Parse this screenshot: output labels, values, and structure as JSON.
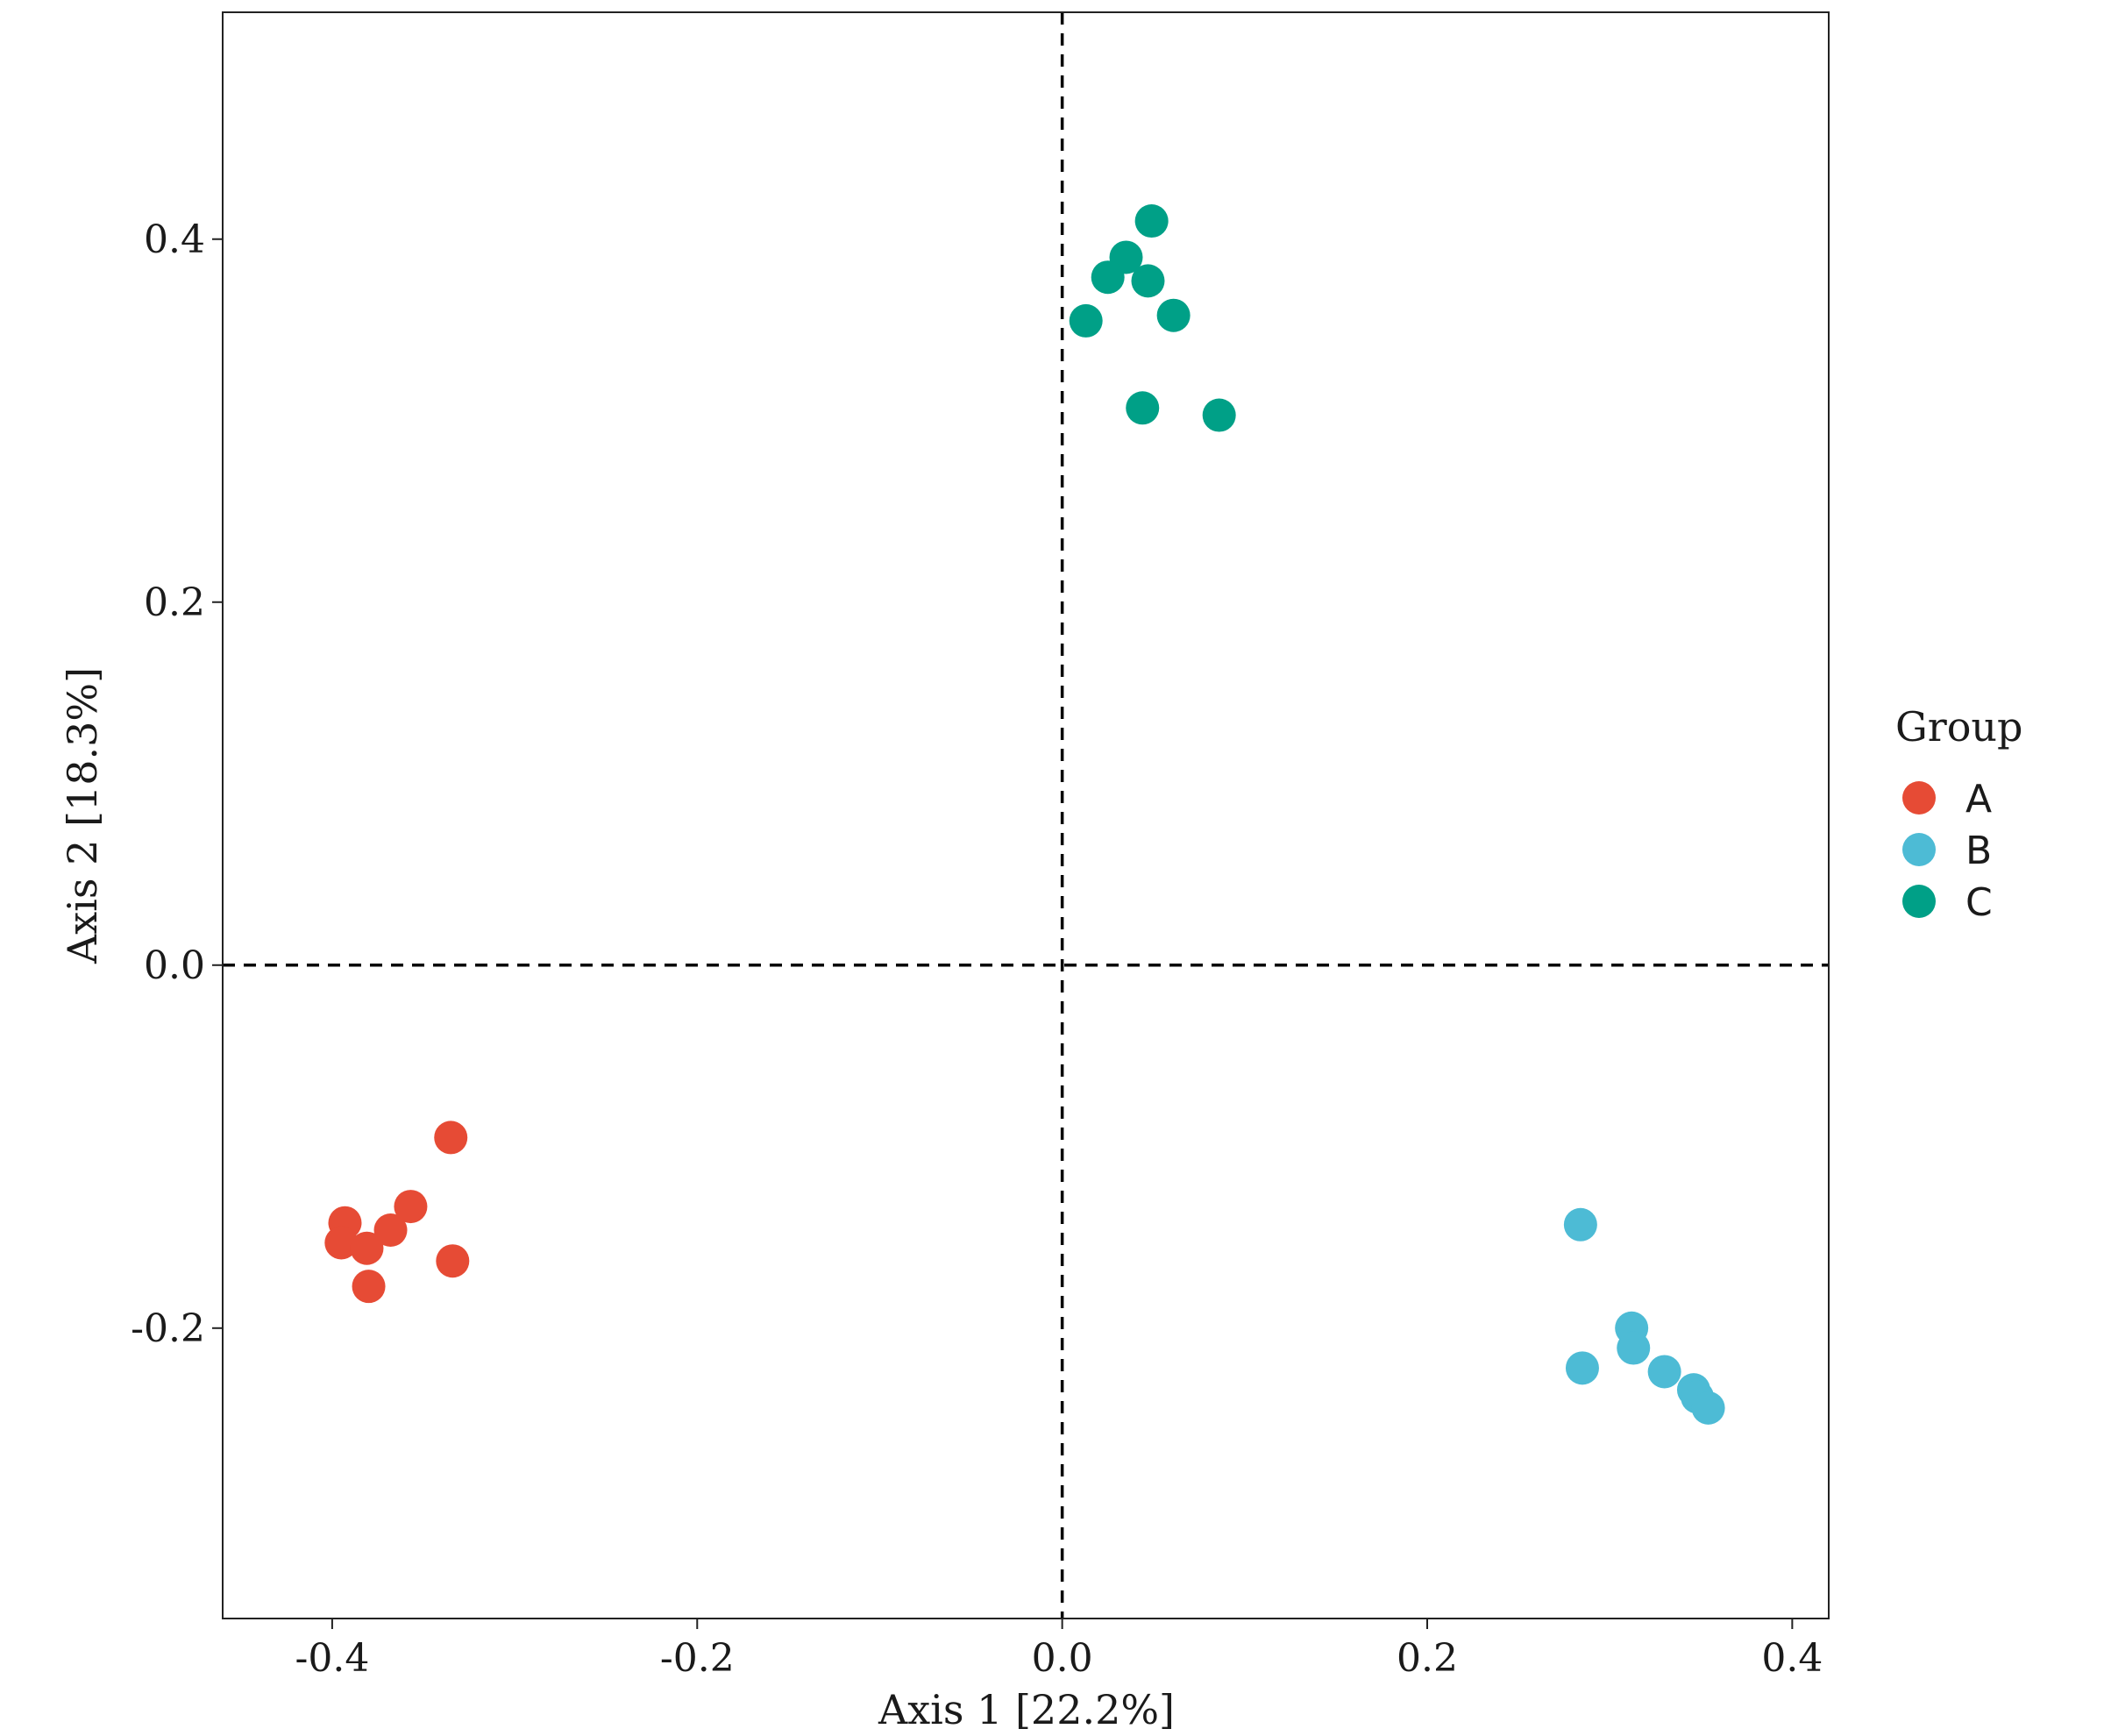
{
  "chart_data": {
    "type": "scatter",
    "xlabel": "Axis 1 [22.2%]",
    "ylabel": "Axis 2 [18.3%]",
    "xlim": [
      -0.46,
      0.42
    ],
    "ylim": [
      -0.36,
      0.525
    ],
    "x_ticks": [
      -0.4,
      -0.2,
      0.0,
      0.2,
      0.4
    ],
    "x_tick_labels": [
      "-0.4",
      "-0.2",
      "0.0",
      "0.2",
      "0.4"
    ],
    "y_ticks": [
      -0.2,
      0.0,
      0.2,
      0.4
    ],
    "y_tick_labels": [
      "-0.2",
      "0.0",
      "0.2",
      "0.4"
    ],
    "reference_lines": {
      "x": 0.0,
      "y": 0.0,
      "style": "dashed"
    },
    "grid": false,
    "legend": {
      "title": "Group",
      "placement": "right"
    },
    "series": [
      {
        "name": "A",
        "color": "#E64B35",
        "points": [
          [
            -0.335,
            -0.095
          ],
          [
            -0.357,
            -0.133
          ],
          [
            -0.368,
            -0.146
          ],
          [
            -0.393,
            -0.142
          ],
          [
            -0.395,
            -0.153
          ],
          [
            -0.381,
            -0.156
          ],
          [
            -0.334,
            -0.163
          ],
          [
            -0.38,
            -0.177
          ]
        ]
      },
      {
        "name": "B",
        "color": "#4DBBD5",
        "points": [
          [
            0.284,
            -0.143
          ],
          [
            0.312,
            -0.2
          ],
          [
            0.313,
            -0.211
          ],
          [
            0.285,
            -0.222
          ],
          [
            0.33,
            -0.224
          ],
          [
            0.346,
            -0.234
          ],
          [
            0.348,
            -0.238
          ],
          [
            0.354,
            -0.244
          ]
        ]
      },
      {
        "name": "C",
        "color": "#00A087",
        "points": [
          [
            0.049,
            0.41
          ],
          [
            0.035,
            0.39
          ],
          [
            0.025,
            0.379
          ],
          [
            0.047,
            0.377
          ],
          [
            0.013,
            0.355
          ],
          [
            0.061,
            0.358
          ],
          [
            0.044,
            0.307
          ],
          [
            0.086,
            0.303
          ]
        ]
      }
    ]
  }
}
